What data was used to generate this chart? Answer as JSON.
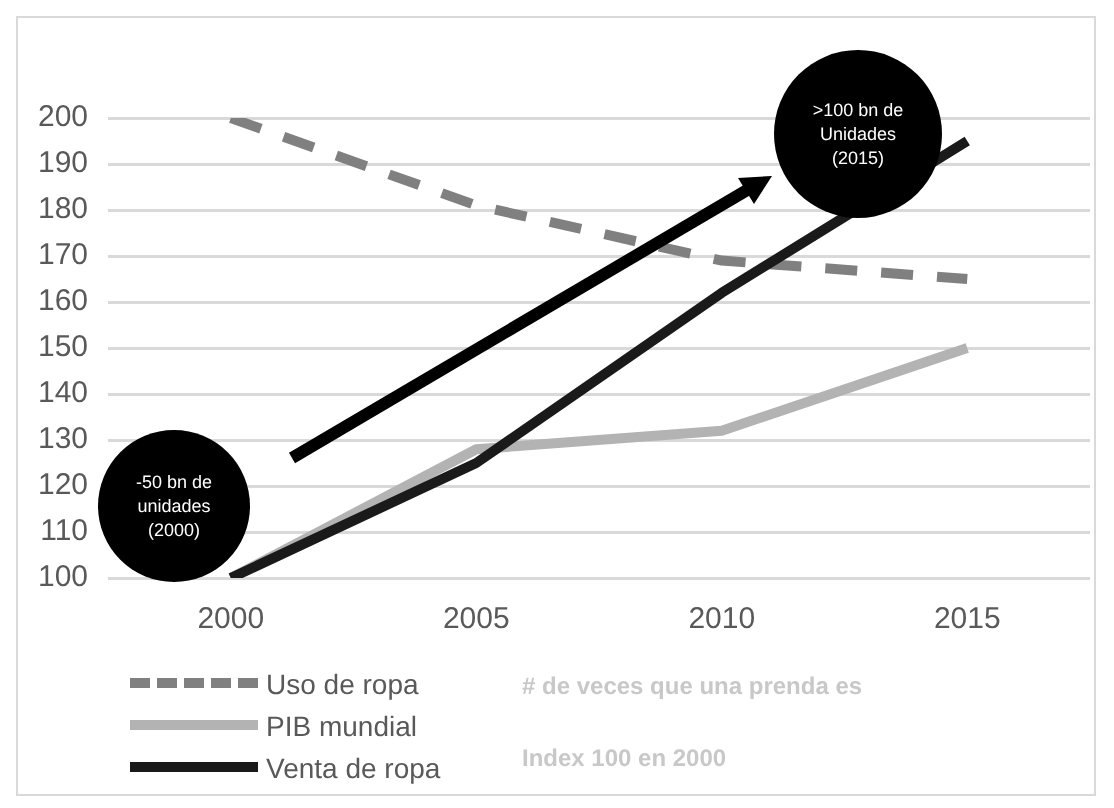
{
  "chart_data": {
    "type": "line",
    "categories": [
      "2000",
      "2005",
      "2010",
      "2015"
    ],
    "series": [
      {
        "name": "Uso de ropa",
        "color": "#808080",
        "line_style": "dashed",
        "values": [
          200,
          181,
          169,
          165
        ]
      },
      {
        "name": "PIB mundial",
        "color": "#b3b3b3",
        "values": [
          100,
          128,
          132,
          150
        ]
      },
      {
        "name": "Venta de ropa",
        "color": "#1a1a1a",
        "values": [
          100,
          125,
          162,
          195
        ]
      }
    ],
    "ylim": [
      100,
      200
    ],
    "yticks": [
      100,
      110,
      120,
      130,
      140,
      150,
      160,
      170,
      180,
      190,
      200
    ],
    "grid": "y",
    "legend": "bottom",
    "marker": "none",
    "annotations": [
      "-50 bn de unidades (2000)",
      ">100 bn de Unidades (2015)",
      "# de veces que una prenda es",
      "Index 100 en 2000"
    ]
  }
}
